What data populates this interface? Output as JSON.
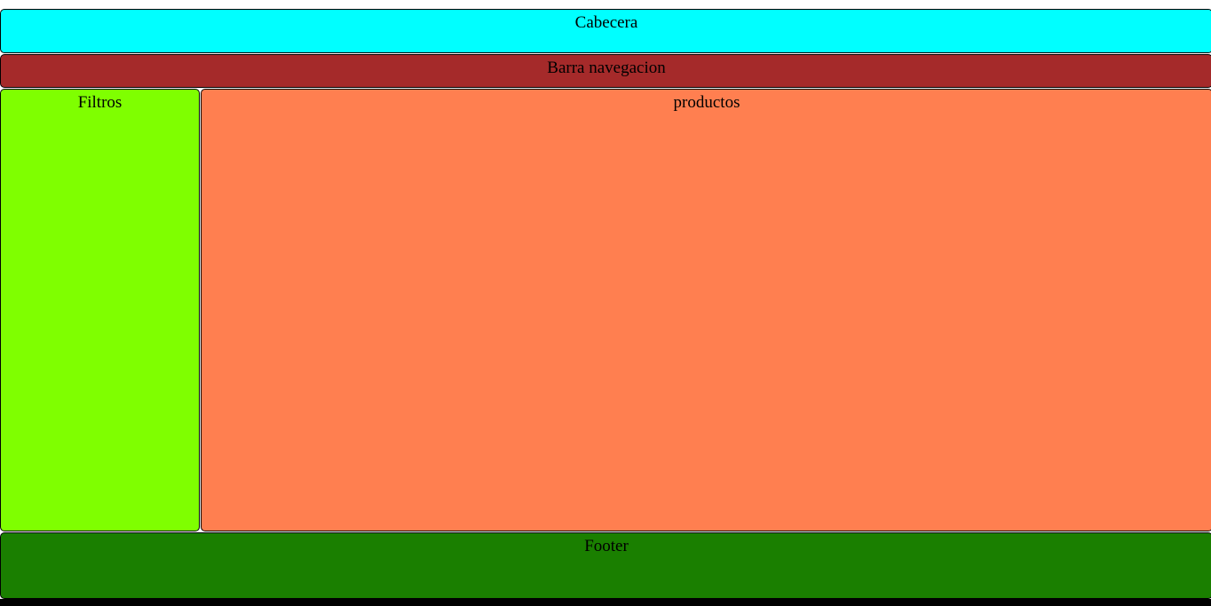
{
  "header": {
    "label": "Cabecera",
    "color": "#00ffff"
  },
  "navbar": {
    "label": "Barra navegacion",
    "color": "#a52a2a"
  },
  "filters": {
    "label": "Filtros",
    "color": "#7fff00"
  },
  "products": {
    "label": "productos",
    "color": "#ff7f50"
  },
  "footer": {
    "label": "Footer",
    "color": "#1a7f00"
  }
}
